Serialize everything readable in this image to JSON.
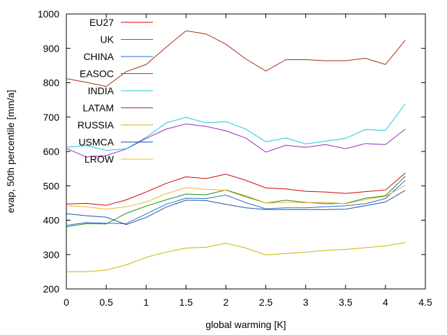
{
  "chart_data": {
    "type": "line",
    "xlabel": "global warming [K]",
    "ylabel": "evap, 50th percentile [mm/a]",
    "xlim": [
      0,
      4.5
    ],
    "ylim": [
      200,
      1000
    ],
    "xticks": [
      "0",
      "0.5",
      "1",
      "1.5",
      "2",
      "2.5",
      "3",
      "3.5",
      "4",
      "4.5"
    ],
    "yticks": [
      "200",
      "300",
      "400",
      "500",
      "600",
      "700",
      "800",
      "900",
      "1000"
    ],
    "grid": false,
    "legend_position": "top-left",
    "x": [
      0,
      0.25,
      0.5,
      0.75,
      1,
      1.25,
      1.5,
      1.75,
      2,
      2.25,
      2.5,
      2.75,
      3,
      3.25,
      3.5,
      3.75,
      4,
      4.25
    ],
    "series": [
      {
        "name": "EU27",
        "color": "#d40000",
        "values": [
          447,
          449,
          443,
          459,
          482,
          507,
          526,
          521,
          534,
          516,
          494,
          491,
          484,
          482,
          478,
          483,
          488,
          537
        ]
      },
      {
        "name": "UK",
        "color": "#1a8c1a",
        "values": [
          381,
          390,
          389,
          420,
          441,
          459,
          476,
          474,
          488,
          470,
          450,
          458,
          452,
          448,
          449,
          464,
          471,
          528
        ]
      },
      {
        "name": "CHINA",
        "color": "#1f6fd0",
        "values": [
          385,
          393,
          391,
          390,
          418,
          446,
          464,
          463,
          473,
          451,
          433,
          436,
          436,
          439,
          442,
          448,
          463,
          516
        ]
      },
      {
        "name": "EASOC",
        "color": "#a020c0",
        "values": [
          609,
          584,
          588,
          607,
          638,
          665,
          680,
          673,
          660,
          639,
          598,
          618,
          612,
          620,
          608,
          623,
          620,
          665
        ]
      },
      {
        "name": "INDIA",
        "color": "#19c8d8",
        "values": [
          612,
          617,
          603,
          608,
          641,
          683,
          699,
          683,
          687,
          665,
          628,
          639,
          622,
          630,
          638,
          664,
          661,
          739
        ]
      },
      {
        "name": "LATAM",
        "color": "#a03010",
        "values": [
          812,
          801,
          789,
          832,
          853,
          903,
          951,
          942,
          912,
          869,
          834,
          867,
          867,
          864,
          864,
          871,
          853,
          924
        ]
      },
      {
        "name": "RUSSIA",
        "color": "#c8b400",
        "values": [
          250,
          250,
          255,
          270,
          292,
          307,
          319,
          321,
          333,
          319,
          299,
          303,
          307,
          312,
          315,
          320,
          325,
          335
        ]
      },
      {
        "name": "USMCA",
        "color": "#2050a8",
        "values": [
          419,
          413,
          409,
          387,
          408,
          438,
          458,
          457,
          446,
          436,
          431,
          431,
          431,
          431,
          432,
          442,
          453,
          487
        ]
      },
      {
        "name": "LROW",
        "color": "#f0b030",
        "values": [
          442,
          439,
          432,
          439,
          453,
          477,
          495,
          490,
          487,
          467,
          450,
          452,
          451,
          452,
          448,
          460,
          469,
          502
        ]
      }
    ]
  }
}
